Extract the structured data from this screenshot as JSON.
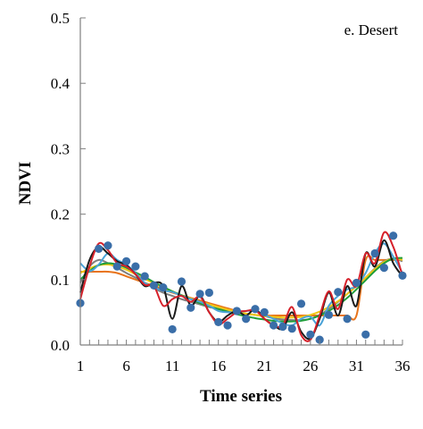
{
  "chart_data": {
    "type": "line",
    "panel_label": "e. Desert",
    "xlabel": "Time series",
    "ylabel": "NDVI",
    "xlim": [
      1,
      36
    ],
    "ylim": [
      0.0,
      0.5
    ],
    "x_ticks": [
      1,
      6,
      11,
      16,
      21,
      26,
      31,
      36
    ],
    "y_ticks": [
      "0.0",
      "0.1",
      "0.2",
      "0.3",
      "0.4",
      "0.5"
    ],
    "grid": false,
    "observed_points": {
      "color": "#3a6ea8",
      "x": [
        1,
        3,
        4,
        5,
        6,
        7,
        8,
        9,
        10,
        11,
        12,
        13,
        14,
        15,
        16,
        17,
        18,
        19,
        20,
        21,
        22,
        23,
        24,
        25,
        26,
        27,
        28,
        29,
        30,
        31,
        32,
        33,
        34,
        35,
        36
      ],
      "y": [
        0.064,
        0.147,
        0.152,
        0.12,
        0.128,
        0.12,
        0.105,
        0.091,
        0.088,
        0.024,
        0.097,
        0.057,
        0.078,
        0.08,
        0.035,
        0.03,
        0.052,
        0.04,
        0.055,
        0.05,
        0.03,
        0.028,
        0.025,
        0.063,
        0.016,
        0.008,
        0.046,
        0.081,
        0.04,
        0.095,
        0.016,
        0.14,
        0.118,
        0.167,
        0.106
      ]
    },
    "series": [
      {
        "color": "#e8731a",
        "values": [
          0.112,
          0.112,
          0.112,
          0.112,
          0.11,
          0.105,
          0.1,
          0.095,
          0.09,
          0.085,
          0.08,
          0.076,
          0.072,
          0.068,
          0.064,
          0.06,
          0.056,
          0.052,
          0.048,
          0.046,
          0.045,
          0.045,
          0.045,
          0.045,
          0.045,
          0.045,
          0.045,
          0.045,
          0.045,
          0.045,
          0.045,
          0.13,
          0.13,
          0.13,
          0.13,
          0.13
        ]
      },
      {
        "color": "#7f7f7f",
        "values": [
          0.095,
          0.12,
          0.13,
          0.125,
          0.118,
          0.11,
          0.103,
          0.095,
          0.087,
          0.08,
          0.075,
          0.07,
          0.066,
          0.062,
          0.058,
          0.055,
          0.052,
          0.05,
          0.048,
          0.046,
          0.044,
          0.041,
          0.039,
          0.038,
          0.038,
          0.04,
          0.046,
          0.055,
          0.066,
          0.078,
          0.09,
          0.103,
          0.117,
          0.128,
          0.132,
          0.128
        ]
      },
      {
        "color": "#f2c814",
        "values": [
          0.11,
          0.117,
          0.122,
          0.123,
          0.12,
          0.115,
          0.108,
          0.101,
          0.094,
          0.088,
          0.082,
          0.076,
          0.071,
          0.066,
          0.062,
          0.058,
          0.054,
          0.051,
          0.048,
          0.046,
          0.044,
          0.043,
          0.042,
          0.042,
          0.043,
          0.046,
          0.051,
          0.058,
          0.067,
          0.078,
          0.09,
          0.103,
          0.116,
          0.127,
          0.132,
          0.13
        ]
      },
      {
        "color": "#1f9e3a",
        "values": [
          0.1,
          0.113,
          0.122,
          0.125,
          0.123,
          0.118,
          0.111,
          0.104,
          0.096,
          0.089,
          0.082,
          0.076,
          0.07,
          0.064,
          0.059,
          0.055,
          0.051,
          0.047,
          0.044,
          0.041,
          0.039,
          0.037,
          0.036,
          0.036,
          0.037,
          0.04,
          0.045,
          0.052,
          0.061,
          0.072,
          0.085,
          0.099,
          0.113,
          0.125,
          0.132,
          0.133
        ]
      },
      {
        "color": "#4aa3d8",
        "values": [
          0.125,
          0.113,
          0.123,
          0.14,
          0.13,
          0.123,
          0.11,
          0.095,
          0.088,
          0.083,
          0.081,
          0.075,
          0.07,
          0.066,
          0.06,
          0.052,
          0.05,
          0.05,
          0.052,
          0.052,
          0.046,
          0.04,
          0.033,
          0.03,
          0.04,
          0.043,
          0.03,
          0.06,
          0.075,
          0.085,
          0.09,
          0.11,
          0.14,
          0.155,
          0.135,
          0.11
        ]
      },
      {
        "color": "#1a1a1a",
        "values": [
          0.08,
          0.13,
          0.15,
          0.14,
          0.128,
          0.122,
          0.108,
          0.09,
          0.095,
          0.09,
          0.04,
          0.09,
          0.06,
          0.075,
          0.05,
          0.035,
          0.045,
          0.052,
          0.045,
          0.055,
          0.04,
          0.03,
          0.025,
          0.05,
          0.02,
          0.01,
          0.04,
          0.08,
          0.045,
          0.09,
          0.06,
          0.14,
          0.12,
          0.16,
          0.125,
          0.105
        ]
      },
      {
        "color": "#d6202a",
        "values": [
          0.07,
          0.12,
          0.155,
          0.145,
          0.125,
          0.12,
          0.108,
          0.092,
          0.09,
          0.06,
          0.07,
          0.075,
          0.066,
          0.074,
          0.05,
          0.032,
          0.04,
          0.05,
          0.052,
          0.053,
          0.04,
          0.03,
          0.03,
          0.058,
          0.015,
          0.008,
          0.045,
          0.082,
          0.055,
          0.1,
          0.09,
          0.14,
          0.125,
          0.172,
          0.15,
          0.106
        ]
      }
    ]
  }
}
